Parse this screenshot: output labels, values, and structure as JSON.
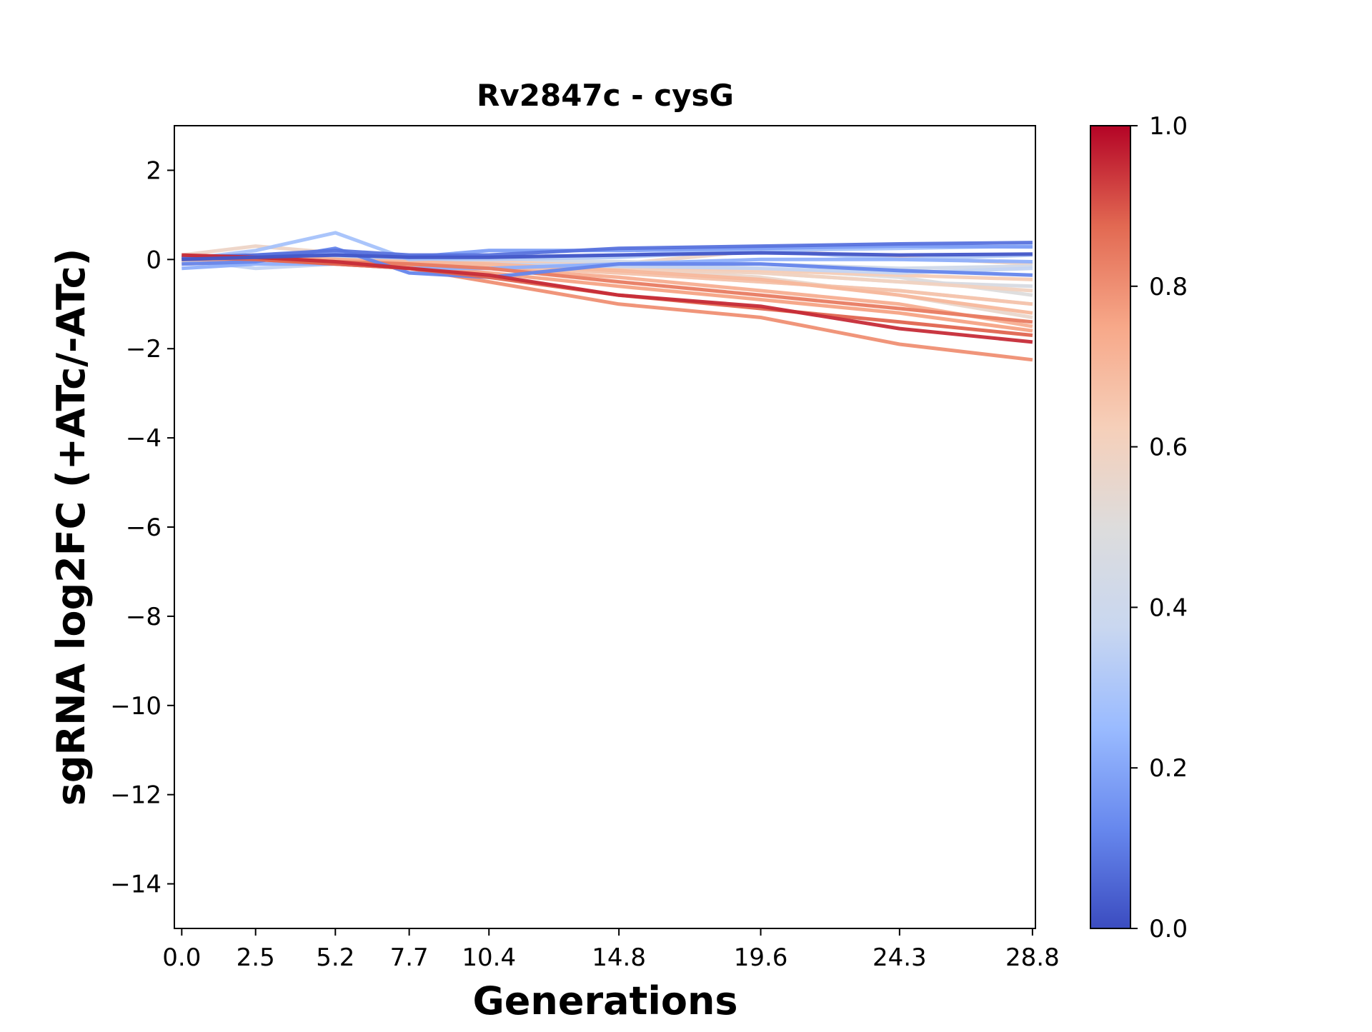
{
  "chart_data": {
    "type": "line",
    "title": "Rv2847c - cysG",
    "xlabel": "Generations",
    "ylabel": "sgRNA log2FC (+ATc/-ATc)",
    "x": [
      0.0,
      2.5,
      5.2,
      7.7,
      10.4,
      14.8,
      19.6,
      24.3,
      28.8
    ],
    "x_tick_labels": [
      "0.0",
      "2.5",
      "5.2",
      "7.7",
      "10.4",
      "14.8",
      "19.6",
      "24.3",
      "28.8"
    ],
    "xlim": [
      -0.25,
      28.9
    ],
    "ylim": [
      -15,
      3
    ],
    "y_ticks": [
      2,
      0,
      -2,
      -4,
      -6,
      -8,
      -10,
      -12,
      -14
    ],
    "y_tick_labels": [
      "2",
      "0",
      "−2",
      "−4",
      "−6",
      "−8",
      "−10",
      "−12",
      "−14"
    ],
    "grid": false,
    "colorbar": {
      "colormap": "coolwarm",
      "min": 0.0,
      "max": 1.0,
      "ticks": [
        0.0,
        0.2,
        0.4,
        0.6,
        0.8,
        1.0
      ],
      "tick_labels": [
        "0.0",
        "0.2",
        "0.4",
        "0.6",
        "0.8",
        "1.0"
      ],
      "stops": [
        "#3b4cc0",
        "#6788ee",
        "#9abbff",
        "#c9d7f0",
        "#dddcdc",
        "#f6cfb9",
        "#f7a889",
        "#e26952",
        "#b40426"
      ]
    },
    "series": [
      {
        "score": 0.02,
        "values": [
          0.0,
          0.05,
          0.1,
          0.05,
          0.05,
          0.1,
          0.15,
          0.1,
          0.12
        ]
      },
      {
        "score": 0.08,
        "values": [
          0.05,
          0.1,
          0.2,
          0.1,
          0.1,
          0.25,
          0.3,
          0.35,
          0.38
        ]
      },
      {
        "score": 0.12,
        "values": [
          -0.1,
          -0.05,
          0.25,
          -0.3,
          -0.4,
          -0.1,
          -0.1,
          -0.25,
          -0.35
        ]
      },
      {
        "score": 0.18,
        "values": [
          0.0,
          0.1,
          0.15,
          0.05,
          0.2,
          0.2,
          0.25,
          0.3,
          0.28
        ]
      },
      {
        "score": 0.22,
        "values": [
          -0.2,
          -0.1,
          -0.1,
          -0.2,
          -0.2,
          -0.1,
          0.0,
          0.0,
          -0.05
        ]
      },
      {
        "score": 0.28,
        "values": [
          0.0,
          0.2,
          0.6,
          0.0,
          0.05,
          0.1,
          0.2,
          0.25,
          0.3
        ]
      },
      {
        "score": 0.32,
        "values": [
          0.1,
          0.0,
          0.1,
          0.0,
          0.0,
          0.05,
          0.2,
          0.0,
          0.1
        ]
      },
      {
        "score": 0.36,
        "values": [
          0.0,
          -0.2,
          -0.1,
          -0.1,
          -0.1,
          -0.15,
          -0.2,
          -0.3,
          -0.2
        ]
      },
      {
        "score": 0.42,
        "values": [
          -0.1,
          0.0,
          0.05,
          0.0,
          0.0,
          -0.05,
          -0.1,
          -0.2,
          -0.15
        ]
      },
      {
        "score": 0.46,
        "values": [
          0.0,
          0.05,
          0.0,
          -0.05,
          -0.1,
          -0.2,
          -0.3,
          -0.5,
          -0.6
        ]
      },
      {
        "score": 0.5,
        "values": [
          0.05,
          0.0,
          -0.05,
          0.0,
          -0.05,
          -0.1,
          -0.2,
          -0.4,
          -0.8
        ]
      },
      {
        "score": 0.53,
        "values": [
          0.0,
          0.1,
          0.0,
          -0.1,
          -0.15,
          -0.3,
          -0.5,
          -0.7,
          -1.0
        ]
      },
      {
        "score": 0.56,
        "values": [
          -0.05,
          0.05,
          0.0,
          -0.05,
          -0.1,
          -0.2,
          -0.4,
          -0.8,
          -1.3
        ]
      },
      {
        "score": 0.58,
        "values": [
          0.1,
          0.3,
          0.15,
          0.05,
          0.0,
          -0.1,
          0.2,
          0.05,
          -0.1
        ]
      },
      {
        "score": 0.6,
        "values": [
          0.0,
          0.0,
          -0.05,
          -0.1,
          -0.1,
          -0.2,
          -0.3,
          -0.5,
          -0.7
        ]
      },
      {
        "score": 0.63,
        "values": [
          0.05,
          0.1,
          0.0,
          -0.05,
          -0.05,
          -0.15,
          -0.25,
          -0.35,
          -0.45
        ]
      },
      {
        "score": 0.66,
        "values": [
          -0.1,
          -0.05,
          -0.05,
          -0.1,
          -0.15,
          -0.3,
          -0.5,
          -0.7,
          -1.0
        ]
      },
      {
        "score": 0.7,
        "values": [
          0.0,
          0.0,
          0.0,
          -0.05,
          -0.1,
          -0.25,
          -0.45,
          -0.8,
          -1.2
        ]
      },
      {
        "score": 0.73,
        "values": [
          0.1,
          0.05,
          0.0,
          -0.1,
          -0.2,
          -0.4,
          -0.7,
          -1.0,
          -1.5
        ]
      },
      {
        "score": 0.76,
        "values": [
          0.0,
          0.0,
          -0.05,
          -0.15,
          -0.3,
          -0.6,
          -0.9,
          -1.2,
          -1.6
        ]
      },
      {
        "score": 0.8,
        "values": [
          0.05,
          0.0,
          -0.1,
          -0.2,
          -0.5,
          -1.0,
          -1.3,
          -1.9,
          -2.25
        ]
      },
      {
        "score": 0.84,
        "values": [
          0.0,
          0.05,
          -0.05,
          -0.1,
          -0.2,
          -0.5,
          -0.8,
          -1.1,
          -1.4
        ]
      },
      {
        "score": 0.88,
        "values": [
          0.05,
          0.0,
          -0.1,
          -0.2,
          -0.4,
          -0.8,
          -1.1,
          -1.4,
          -1.7
        ]
      },
      {
        "score": 0.95,
        "values": [
          0.1,
          0.05,
          -0.05,
          -0.2,
          -0.35,
          -0.8,
          -1.05,
          -1.55,
          -1.85
        ]
      }
    ]
  }
}
